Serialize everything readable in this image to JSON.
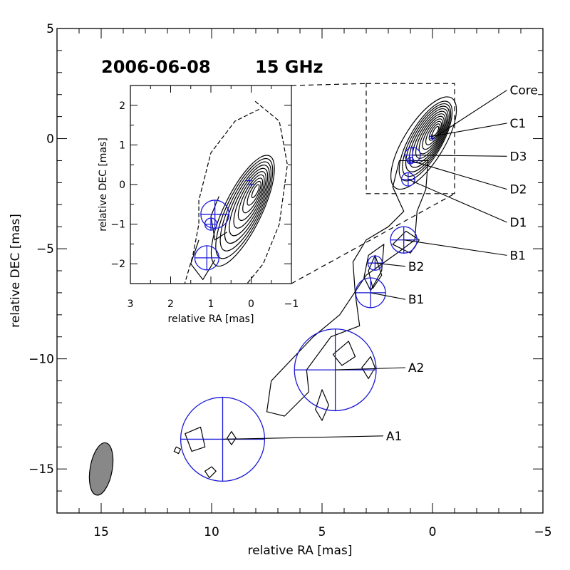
{
  "chart_data": {
    "type": "contour",
    "title_date": "2006-06-08",
    "title_freq": "15 GHz",
    "xlabel": "relative RA [mas]",
    "ylabel": "relative DEC [mas]",
    "xlim": [
      17,
      -5
    ],
    "ylim": [
      -17,
      5
    ],
    "xticks": [
      15,
      10,
      5,
      0,
      -5
    ],
    "yticks": [
      5,
      0,
      -5,
      -10,
      -15
    ],
    "components": [
      {
        "name": "Core",
        "x": 0.0,
        "y": 0.0,
        "size": 0.1,
        "label_pos": [
          -3.5,
          2.2
        ]
      },
      {
        "name": "C1",
        "x": 0.05,
        "y": 0.1,
        "size": 0.1,
        "label_pos": [
          -3.5,
          0.7
        ]
      },
      {
        "name": "D3",
        "x": 0.9,
        "y": -0.75,
        "size": 0.7,
        "label_pos": [
          -3.5,
          -0.8
        ]
      },
      {
        "name": "D2",
        "x": 1.0,
        "y": -1.0,
        "size": 0.3,
        "label_pos": [
          -3.5,
          -2.3
        ]
      },
      {
        "name": "D1",
        "x": 1.1,
        "y": -1.85,
        "size": 0.6,
        "label_pos": [
          -3.5,
          -3.8
        ]
      },
      {
        "name": "B1",
        "x": 1.3,
        "y": -4.6,
        "size": 1.2,
        "label_pos": [
          -3.5,
          -5.3
        ]
      },
      {
        "name": "B2",
        "x": 2.6,
        "y": -5.65,
        "size": 0.65,
        "label_pos": [
          1.1,
          -5.8
        ]
      },
      {
        "name": "B1",
        "x": 2.8,
        "y": -7.0,
        "size": 1.35,
        "label_pos": [
          1.1,
          -7.3
        ]
      },
      {
        "name": "A2",
        "x": 4.4,
        "y": -10.5,
        "size": 3.7,
        "label_pos": [
          1.1,
          -10.4
        ]
      },
      {
        "name": "A1",
        "x": 9.5,
        "y": -13.65,
        "size": 3.8,
        "label_pos": [
          2.1,
          -13.5
        ]
      }
    ],
    "beam": {
      "x": 15.0,
      "y": -15.0,
      "major": 1.2,
      "minor": 0.5
    },
    "zoom_box": {
      "x_range": [
        3,
        -1
      ],
      "y_range": [
        -2.5,
        2.5
      ]
    },
    "inset": {
      "xlabel": "relative RA [mas]",
      "ylabel": "relative DEC [mas]",
      "xlim": [
        3,
        -1
      ],
      "ylim": [
        -2.5,
        2.5
      ],
      "xticks": [
        3,
        2,
        1,
        0,
        -1
      ],
      "yticks": [
        2,
        1,
        0,
        -1,
        -2
      ]
    }
  }
}
